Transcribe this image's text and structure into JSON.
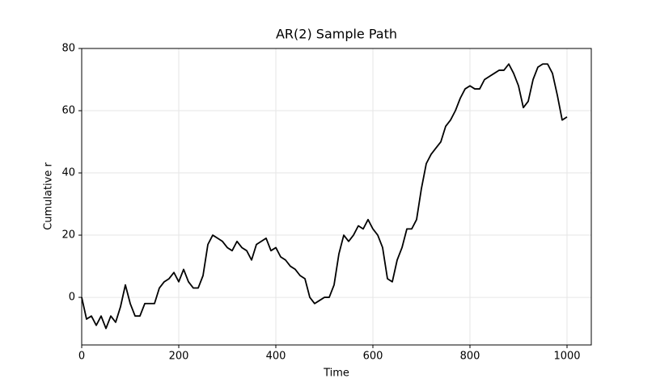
{
  "chart_data": {
    "type": "line",
    "title": "AR(2) Sample Path",
    "x_label": "Time",
    "y_label": "Cumulative r",
    "x": [
      0,
      10,
      20,
      30,
      40,
      50,
      60,
      70,
      80,
      90,
      100,
      110,
      120,
      130,
      140,
      150,
      160,
      170,
      180,
      190,
      200,
      210,
      220,
      230,
      240,
      250,
      260,
      270,
      280,
      290,
      300,
      310,
      320,
      330,
      340,
      350,
      360,
      370,
      380,
      390,
      400,
      410,
      420,
      430,
      440,
      450,
      460,
      470,
      480,
      490,
      500,
      510,
      520,
      530,
      540,
      550,
      560,
      570,
      580,
      590,
      600,
      610,
      620,
      630,
      640,
      650,
      660,
      670,
      680,
      690,
      700,
      710,
      720,
      730,
      740,
      750,
      760,
      770,
      780,
      790,
      800,
      810,
      820,
      830,
      840,
      850,
      860,
      870,
      880,
      890,
      900,
      910,
      920,
      930,
      940,
      950,
      960,
      970,
      980,
      990,
      1000
    ],
    "series": [
      {
        "name": "Cumulative r",
        "color": "#000000",
        "values": [
          0,
          -7,
          -6,
          -9,
          -6,
          -10,
          -6,
          -8,
          -3,
          4,
          -2,
          -6,
          -6,
          -2,
          -2,
          -2,
          3,
          5,
          6,
          8,
          5,
          9,
          5,
          3,
          3,
          7,
          17,
          20,
          19,
          18,
          16,
          15,
          18,
          16,
          15,
          12,
          17,
          18,
          19,
          15,
          16,
          13,
          12,
          10,
          9,
          7,
          6,
          0,
          -2,
          -1,
          0,
          0,
          4,
          14,
          20,
          18,
          20,
          23,
          22,
          25,
          22,
          20,
          16,
          6,
          5,
          12,
          16,
          22,
          22,
          25,
          35,
          43,
          46,
          48,
          50,
          55,
          57,
          60,
          64,
          67,
          68,
          67,
          67,
          70,
          71,
          72,
          73,
          73,
          75,
          72,
          68,
          61,
          63,
          70,
          74,
          75,
          75,
          72,
          65,
          57,
          58
        ]
      }
    ],
    "xlim": [
      0,
      1050
    ],
    "ylim": [
      -15.3,
      80
    ],
    "xticks": [
      0,
      200,
      400,
      600,
      800,
      1000
    ],
    "yticks": [
      0,
      20,
      40,
      60,
      80
    ],
    "grid": true
  }
}
